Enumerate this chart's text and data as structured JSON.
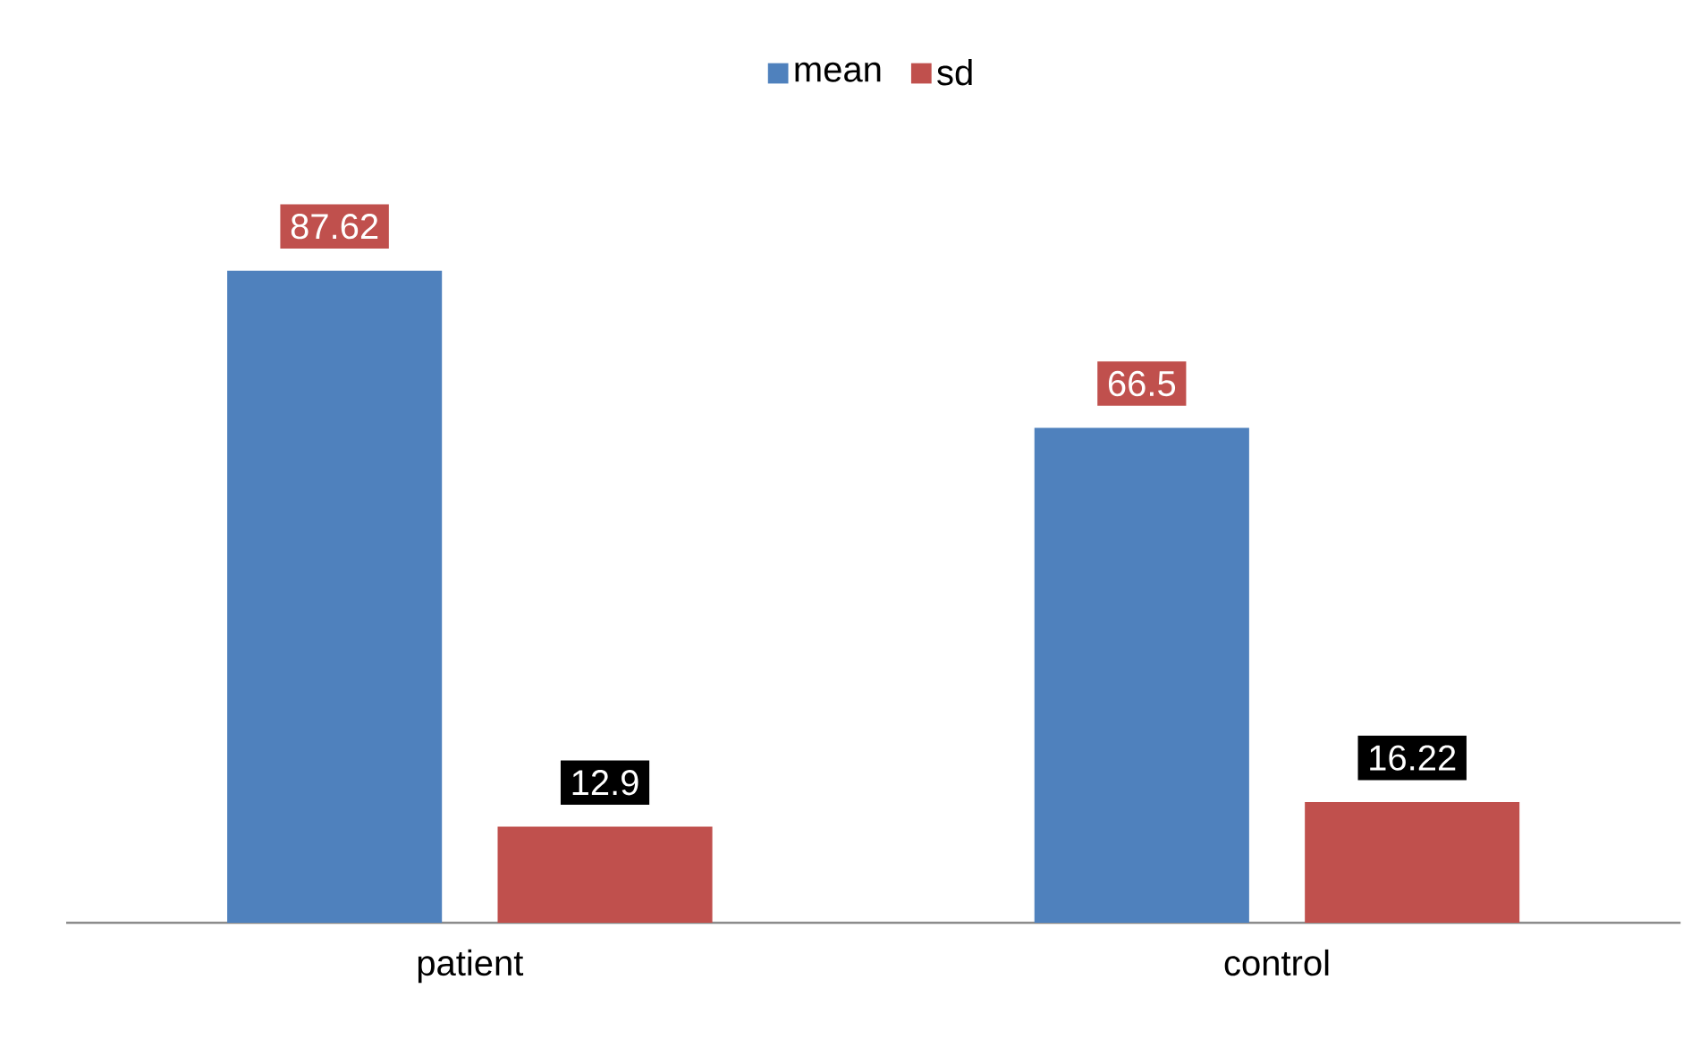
{
  "chart_data": {
    "type": "bar",
    "categories": [
      "patient",
      "control"
    ],
    "series": [
      {
        "name": "mean",
        "color": "#4f81bd",
        "values": [
          87.62,
          66.5
        ]
      },
      {
        "name": "sd",
        "color": "#c0504d",
        "values": [
          12.9,
          16.22
        ]
      }
    ],
    "data_labels": true,
    "legend": "top"
  }
}
